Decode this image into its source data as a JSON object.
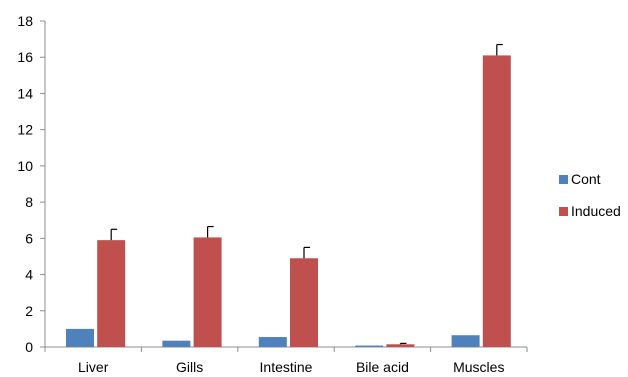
{
  "chart_data": {
    "type": "bar",
    "categories": [
      "Liver",
      "Gills",
      "Intestine",
      "Bile acid",
      "Muscles"
    ],
    "series": [
      {
        "name": "Cont",
        "color": "#4F81BD",
        "values": [
          1.0,
          0.35,
          0.55,
          0.08,
          0.65
        ],
        "errors": [
          0,
          0,
          0,
          0,
          0
        ]
      },
      {
        "name": "Induced",
        "color": "#C0504D",
        "values": [
          5.9,
          6.05,
          4.9,
          0.15,
          16.1
        ],
        "errors": [
          0.6,
          0.6,
          0.6,
          0.05,
          0.6
        ]
      }
    ],
    "ylim": [
      0,
      18
    ],
    "yticks": [
      0,
      2,
      4,
      6,
      8,
      10,
      12,
      14,
      16,
      18
    ],
    "title": "",
    "xlabel": "",
    "ylabel": "",
    "grid": false,
    "legend_position": "right"
  }
}
